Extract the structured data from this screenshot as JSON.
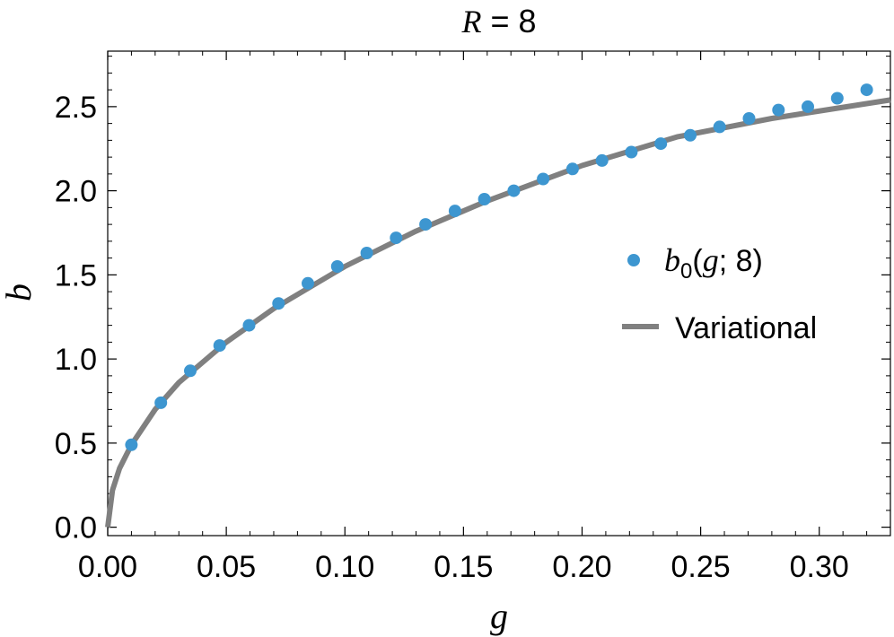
{
  "chart_data": {
    "type": "scatter",
    "title": {
      "var": "R",
      "eq": " = ",
      "val": "8"
    },
    "xlabel": "g",
    "ylabel": "b",
    "xlim": [
      0.0,
      0.33
    ],
    "ylim": [
      -0.05,
      2.83
    ],
    "xticks": [
      0.0,
      0.05,
      0.1,
      0.15,
      0.2,
      0.25,
      0.3
    ],
    "xtick_labels": [
      "0.00",
      "0.05",
      "0.10",
      "0.15",
      "0.20",
      "0.25",
      "0.30"
    ],
    "yticks": [
      0.0,
      0.5,
      1.0,
      1.5,
      2.0,
      2.5
    ],
    "ytick_labels": [
      "0.0",
      "0.5",
      "1.0",
      "1.5",
      "2.0",
      "2.5"
    ],
    "grid": false,
    "legend_position": "right",
    "series": [
      {
        "name": "b0(g; 8)",
        "name_parts": {
          "var": "b",
          "sub": "0",
          "open": "(",
          "arg": "g",
          "rest": "; 8)"
        },
        "kind": "points",
        "color": "#3d96d0",
        "x": [
          0.01,
          0.0224,
          0.0348,
          0.0472,
          0.0596,
          0.072,
          0.0844,
          0.0968,
          0.1092,
          0.1216,
          0.134,
          0.1464,
          0.1588,
          0.1712,
          0.1836,
          0.196,
          0.2084,
          0.2208,
          0.2332,
          0.2456,
          0.258,
          0.2704,
          0.2828,
          0.2952,
          0.3076,
          0.32
        ],
        "y": [
          0.49,
          0.74,
          0.93,
          1.08,
          1.2,
          1.33,
          1.45,
          1.55,
          1.63,
          1.72,
          1.8,
          1.88,
          1.95,
          2.0,
          2.07,
          2.13,
          2.18,
          2.23,
          2.28,
          2.33,
          2.38,
          2.43,
          2.48,
          2.5,
          2.55,
          2.6
        ]
      },
      {
        "name": "Variational",
        "kind": "line",
        "color": "#808080",
        "x": [
          0.0,
          0.002,
          0.005,
          0.01,
          0.02,
          0.03,
          0.05,
          0.07,
          0.1,
          0.13,
          0.16,
          0.2,
          0.24,
          0.28,
          0.33
        ],
        "y": [
          0.0,
          0.22,
          0.35,
          0.49,
          0.7,
          0.86,
          1.1,
          1.3,
          1.55,
          1.76,
          1.94,
          2.15,
          2.32,
          2.43,
          2.54
        ]
      }
    ]
  }
}
